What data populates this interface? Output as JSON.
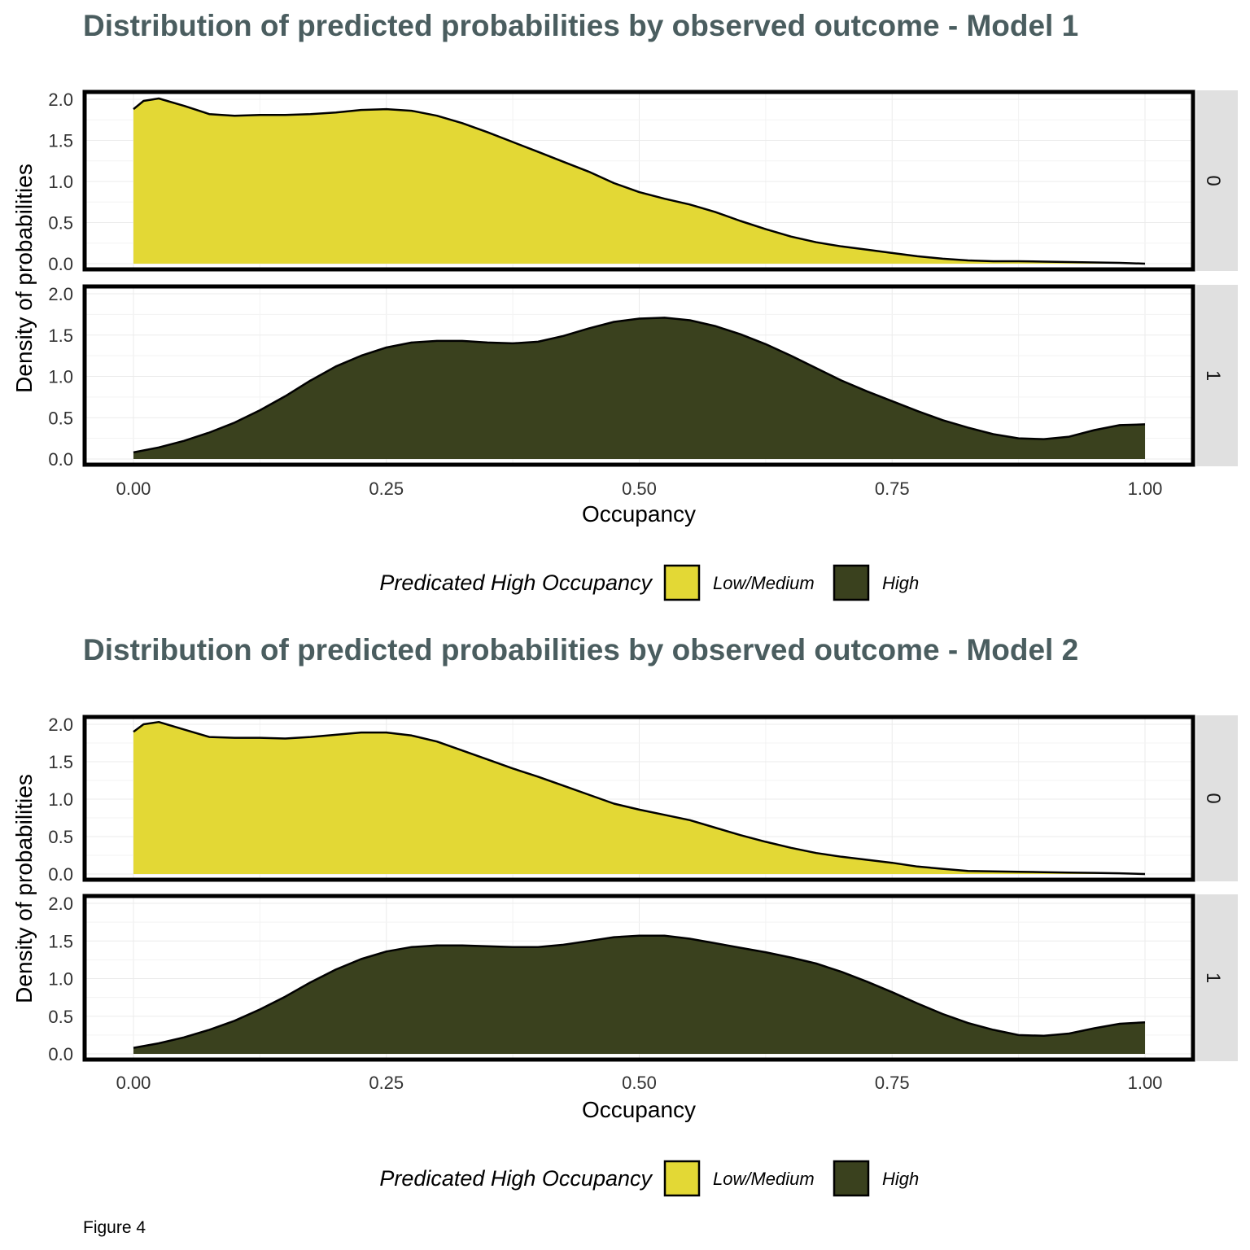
{
  "figure_caption": "Figure 4",
  "colors": {
    "title": "#4a5d5f",
    "low_medium_fill": "#e3d835",
    "high_fill": "#3a411e",
    "outline": "#000000",
    "strip_bg": "#e0e0e0",
    "grid": "#ebebeb",
    "axis_text": "#333333"
  },
  "chart_data": [
    {
      "type": "area",
      "title": "Distribution of predicted probabilities by observed outcome - Model 1",
      "xlabel": "Occupancy",
      "ylabel": "Density of probabilities",
      "xlim": [
        0,
        1
      ],
      "ylim": [
        0,
        2.0
      ],
      "x_ticks": [
        "0.00",
        "0.25",
        "0.50",
        "0.75",
        "1.00"
      ],
      "y_ticks": [
        "0.0",
        "0.5",
        "1.0",
        "1.5",
        "2.0"
      ],
      "grid": true,
      "legend": {
        "position": "bottom",
        "title": "Predicated High Occupancy",
        "entries": [
          "Low/Medium",
          "High"
        ]
      },
      "facets": [
        {
          "strip": "0",
          "series": "Low/Medium",
          "x": [
            0,
            0.01,
            0.025,
            0.05,
            0.075,
            0.1,
            0.125,
            0.15,
            0.175,
            0.2,
            0.225,
            0.25,
            0.275,
            0.3,
            0.325,
            0.35,
            0.375,
            0.4,
            0.425,
            0.45,
            0.475,
            0.5,
            0.525,
            0.55,
            0.575,
            0.6,
            0.625,
            0.65,
            0.675,
            0.7,
            0.725,
            0.75,
            0.775,
            0.8,
            0.825,
            0.85,
            0.875,
            0.9,
            0.925,
            0.95,
            0.975,
            1.0
          ],
          "y": [
            1.88,
            1.98,
            2.01,
            1.92,
            1.82,
            1.8,
            1.81,
            1.81,
            1.82,
            1.84,
            1.87,
            1.88,
            1.86,
            1.8,
            1.71,
            1.6,
            1.48,
            1.36,
            1.24,
            1.12,
            0.98,
            0.87,
            0.79,
            0.72,
            0.63,
            0.52,
            0.42,
            0.33,
            0.26,
            0.21,
            0.17,
            0.13,
            0.09,
            0.06,
            0.04,
            0.03,
            0.03,
            0.025,
            0.02,
            0.015,
            0.01,
            0.0
          ]
        },
        {
          "strip": "1",
          "series": "High",
          "x": [
            0,
            0.025,
            0.05,
            0.075,
            0.1,
            0.125,
            0.15,
            0.175,
            0.2,
            0.225,
            0.25,
            0.275,
            0.3,
            0.325,
            0.35,
            0.375,
            0.4,
            0.425,
            0.45,
            0.475,
            0.5,
            0.525,
            0.55,
            0.575,
            0.6,
            0.625,
            0.65,
            0.675,
            0.7,
            0.725,
            0.75,
            0.775,
            0.8,
            0.825,
            0.85,
            0.875,
            0.9,
            0.925,
            0.95,
            0.975,
            1.0
          ],
          "y": [
            0.08,
            0.14,
            0.22,
            0.32,
            0.44,
            0.59,
            0.76,
            0.95,
            1.12,
            1.25,
            1.35,
            1.41,
            1.43,
            1.43,
            1.41,
            1.4,
            1.42,
            1.49,
            1.58,
            1.66,
            1.7,
            1.71,
            1.68,
            1.61,
            1.51,
            1.39,
            1.25,
            1.1,
            0.95,
            0.82,
            0.7,
            0.58,
            0.47,
            0.38,
            0.3,
            0.25,
            0.24,
            0.27,
            0.35,
            0.41,
            0.42
          ]
        }
      ]
    },
    {
      "type": "area",
      "title": "Distribution of predicted probabilities by observed outcome - Model 2",
      "xlabel": "Occupancy",
      "ylabel": "Density of probabilities",
      "xlim": [
        0,
        1
      ],
      "ylim": [
        0,
        2.0
      ],
      "x_ticks": [
        "0.00",
        "0.25",
        "0.50",
        "0.75",
        "1.00"
      ],
      "y_ticks": [
        "0.0",
        "0.5",
        "1.0",
        "1.5",
        "2.0"
      ],
      "grid": true,
      "legend": {
        "position": "bottom",
        "title": "Predicated High Occupancy",
        "entries": [
          "Low/Medium",
          "High"
        ]
      },
      "facets": [
        {
          "strip": "0",
          "series": "Low/Medium",
          "x": [
            0,
            0.01,
            0.025,
            0.05,
            0.075,
            0.1,
            0.125,
            0.15,
            0.175,
            0.2,
            0.225,
            0.25,
            0.275,
            0.3,
            0.325,
            0.35,
            0.375,
            0.4,
            0.425,
            0.45,
            0.475,
            0.5,
            0.525,
            0.55,
            0.575,
            0.6,
            0.625,
            0.65,
            0.675,
            0.7,
            0.725,
            0.75,
            0.775,
            0.8,
            0.825,
            0.85,
            0.875,
            0.9,
            0.925,
            0.95,
            0.975,
            1.0
          ],
          "y": [
            1.9,
            2.0,
            2.03,
            1.93,
            1.83,
            1.82,
            1.82,
            1.81,
            1.83,
            1.86,
            1.89,
            1.89,
            1.85,
            1.77,
            1.65,
            1.53,
            1.41,
            1.3,
            1.18,
            1.06,
            0.94,
            0.86,
            0.79,
            0.72,
            0.62,
            0.52,
            0.43,
            0.35,
            0.28,
            0.23,
            0.19,
            0.15,
            0.1,
            0.07,
            0.04,
            0.035,
            0.03,
            0.025,
            0.02,
            0.015,
            0.01,
            0.0
          ]
        },
        {
          "strip": "1",
          "series": "High",
          "x": [
            0,
            0.025,
            0.05,
            0.075,
            0.1,
            0.125,
            0.15,
            0.175,
            0.2,
            0.225,
            0.25,
            0.275,
            0.3,
            0.325,
            0.35,
            0.375,
            0.4,
            0.425,
            0.45,
            0.475,
            0.5,
            0.525,
            0.55,
            0.575,
            0.6,
            0.625,
            0.65,
            0.675,
            0.7,
            0.725,
            0.75,
            0.775,
            0.8,
            0.825,
            0.85,
            0.875,
            0.9,
            0.925,
            0.95,
            0.975,
            1.0
          ],
          "y": [
            0.08,
            0.14,
            0.22,
            0.32,
            0.44,
            0.59,
            0.76,
            0.95,
            1.12,
            1.26,
            1.36,
            1.42,
            1.44,
            1.44,
            1.43,
            1.42,
            1.42,
            1.45,
            1.5,
            1.55,
            1.57,
            1.57,
            1.53,
            1.47,
            1.41,
            1.35,
            1.28,
            1.2,
            1.09,
            0.96,
            0.82,
            0.67,
            0.53,
            0.41,
            0.32,
            0.25,
            0.24,
            0.27,
            0.34,
            0.4,
            0.42
          ]
        }
      ]
    }
  ]
}
